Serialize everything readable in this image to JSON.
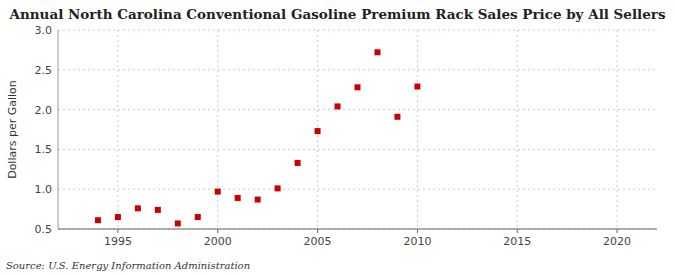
{
  "chart_data": {
    "type": "scatter",
    "title": "Annual North Carolina Conventional Gasoline Premium Rack Sales Price by All Sellers",
    "ylabel": "Dollars per Gallon",
    "annotations": [
      "Source: U.S. Energy Information Administration"
    ],
    "x": [
      1994,
      1995,
      1996,
      1997,
      1998,
      1999,
      2000,
      2001,
      2002,
      2003,
      2004,
      2005,
      2006,
      2007,
      2008,
      2009,
      2010
    ],
    "values": [
      0.61,
      0.65,
      0.76,
      0.74,
      0.57,
      0.65,
      0.97,
      0.89,
      0.87,
      1.01,
      1.33,
      1.73,
      2.04,
      2.28,
      2.72,
      1.91,
      2.29
    ],
    "color": "#cc0000",
    "marker": "square",
    "xlim": [
      1992,
      2022
    ],
    "ylim": [
      0.5,
      3.0
    ],
    "xticks": [
      1995,
      2000,
      2005,
      2010,
      2015,
      2020
    ],
    "yticks": [
      0.5,
      {
        "value": 1,
        "label": "1.0"
      },
      1.5,
      {
        "value": 2,
        "label": "2.0"
      },
      2.5,
      {
        "value": 3,
        "label": "3.0"
      }
    ],
    "grid": true
  }
}
